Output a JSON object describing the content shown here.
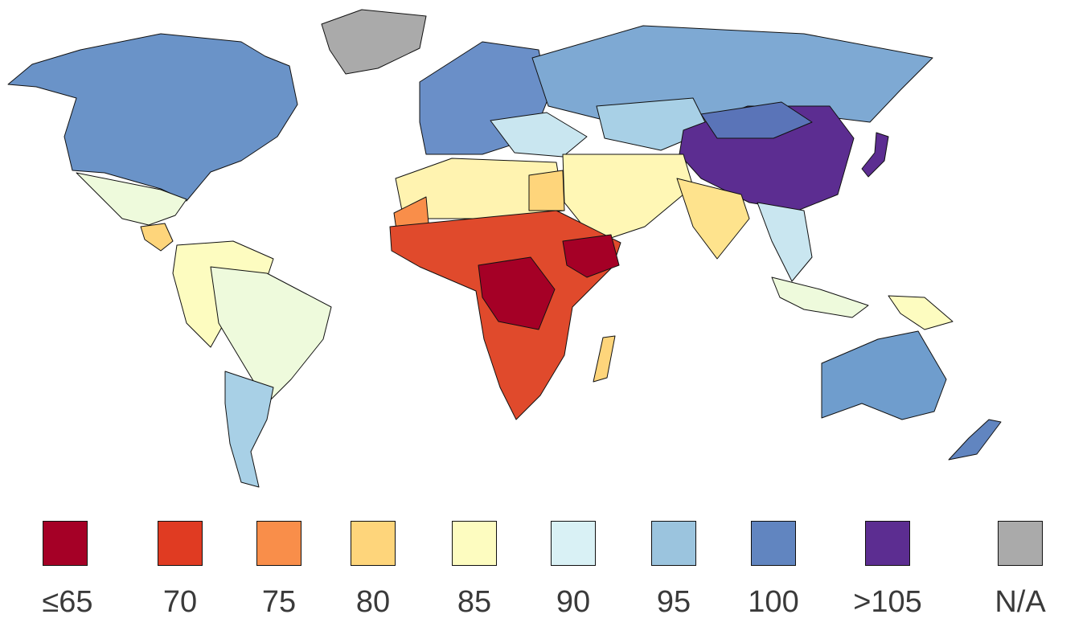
{
  "legend": {
    "items": [
      {
        "label": "≤65",
        "color": "#a50026"
      },
      {
        "label": "70",
        "color": "#e03b22"
      },
      {
        "label": "75",
        "color": "#f98e4a"
      },
      {
        "label": "80",
        "color": "#fed57b"
      },
      {
        "label": "85",
        "color": "#fdfcc0"
      },
      {
        "label": "90",
        "color": "#d9f1f5"
      },
      {
        "label": "95",
        "color": "#9bc4de"
      },
      {
        "label": "100",
        "color": "#6185c0"
      },
      {
        "label": ">105",
        "color": "#5c2d91"
      },
      {
        "label": "N/A",
        "color": "#aaaaaa"
      }
    ]
  }
}
